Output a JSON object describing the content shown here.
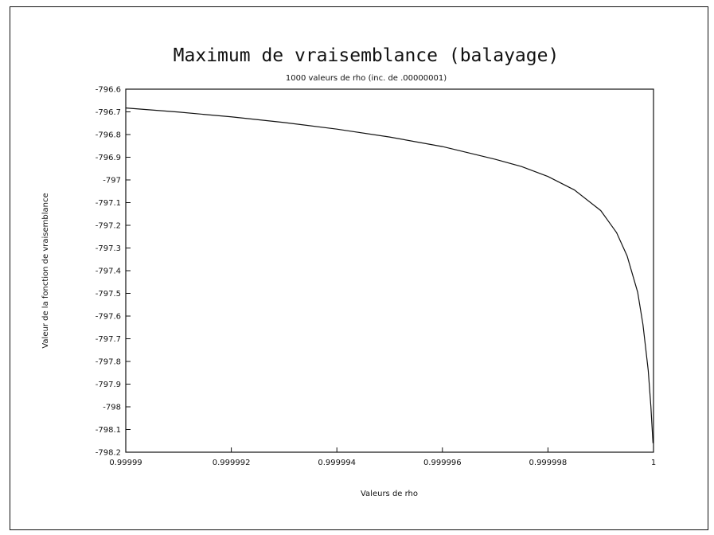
{
  "chart_data": {
    "type": "line",
    "title": "Maximum de vraisemblance (balayage)",
    "subtitle": "1000 valeurs de rho (inc. de .00000001)",
    "xlabel": "Valeurs de rho",
    "ylabel": "Valeur de la fonction de vraisemblance",
    "xlim": [
      0.99999,
      1.0
    ],
    "ylim": [
      -798.2,
      -796.6
    ],
    "x_ticks": [
      0.99999,
      0.999992,
      0.999994,
      0.999996,
      0.999998,
      1.0
    ],
    "x_tick_labels": [
      "0.99999",
      "0.999992",
      "0.999994",
      "0.999996",
      "0.999998",
      "1"
    ],
    "y_ticks": [
      -796.6,
      -796.7,
      -796.8,
      -796.9,
      -797.0,
      -797.1,
      -797.2,
      -797.3,
      -797.4,
      -797.5,
      -797.6,
      -797.7,
      -797.8,
      -797.9,
      -798.0,
      -798.1,
      -798.2
    ],
    "y_tick_labels": [
      "-796.6",
      "-796.7",
      "-796.8",
      "-796.9",
      "-797",
      "-797.1",
      "-797.2",
      "-797.3",
      "-797.4",
      "-797.5",
      "-797.6",
      "-797.7",
      "-797.8",
      "-797.9",
      "-798",
      "-798.1",
      "-798.2"
    ],
    "grid": false,
    "series": [
      {
        "x": [
          0.99999,
          0.999991,
          0.999992,
          0.999993,
          0.999994,
          0.999995,
          0.999996,
          0.999997,
          0.9999975,
          0.999998,
          0.9999985,
          0.999999,
          0.9999993,
          0.9999995,
          0.9999997,
          0.9999998,
          0.9999999,
          0.99999995,
          0.99999999
        ],
        "y": [
          -796.683,
          -796.701,
          -796.722,
          -796.747,
          -796.776,
          -796.811,
          -796.853,
          -796.909,
          -796.941,
          -796.985,
          -797.044,
          -797.135,
          -797.232,
          -797.335,
          -797.495,
          -797.637,
          -797.839,
          -797.997,
          -798.16
        ]
      }
    ],
    "line_color": "#111111"
  }
}
